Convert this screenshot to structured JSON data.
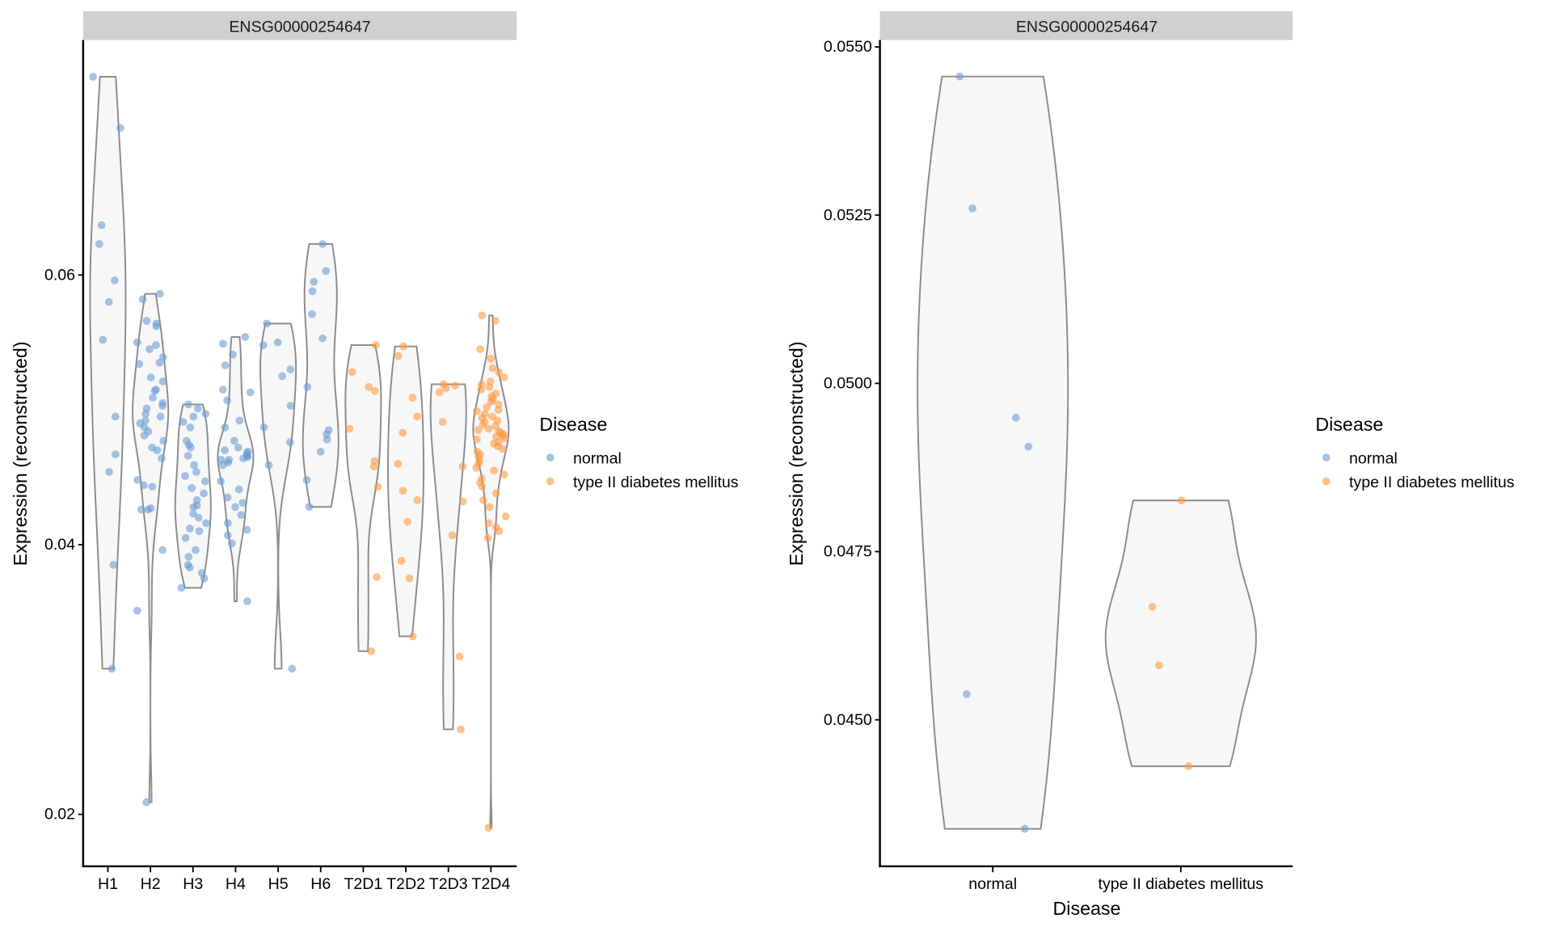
{
  "colors": {
    "normal": "#6c9bd2",
    "type II diabetes mellitus": "#fd9a43",
    "violin_fill": "#f7f7f7",
    "violin_stroke": "#8c8c8c",
    "strip": "#d0d0d0"
  },
  "legend": {
    "title": "Disease",
    "items": [
      "normal",
      "type II diabetes mellitus"
    ]
  },
  "chart_data": [
    {
      "type": "violin",
      "strip_title": "ENSG00000254647",
      "xlabel": "",
      "ylabel": "Expression (reconstructed)",
      "yticks": [
        "0.02",
        "0.04",
        "0.06"
      ],
      "ytick_values": [
        0.02,
        0.04,
        0.06
      ],
      "grid": false,
      "legend_position": "right",
      "categories": [
        "H1",
        "H2",
        "H3",
        "H4",
        "H5",
        "H6",
        "T2D1",
        "T2D2",
        "T2D3",
        "T2D4"
      ],
      "groups": [
        {
          "label": "H1",
          "disease": "normal",
          "values": [
            0.0747,
            0.0709,
            0.0637,
            0.0623,
            0.0596,
            0.058,
            0.0552,
            0.0495,
            0.0467,
            0.0454,
            0.0385,
            0.0308
          ]
        },
        {
          "label": "H2",
          "disease": "normal",
          "values": [
            0.0586,
            0.0582,
            0.0566,
            0.0564,
            0.0562,
            0.055,
            0.0548,
            0.0545,
            0.0539,
            0.0535,
            0.0534,
            0.0524,
            0.0521,
            0.0515,
            0.0514,
            0.0509,
            0.0505,
            0.0503,
            0.0501,
            0.0497,
            0.0495,
            0.0492,
            0.049,
            0.0487,
            0.0484,
            0.0481,
            0.0477,
            0.0472,
            0.047,
            0.0464,
            0.0448,
            0.0444,
            0.0443,
            0.0427,
            0.0426,
            0.0426,
            0.0396,
            0.0351,
            0.0209
          ]
        },
        {
          "label": "H3",
          "disease": "normal",
          "values": [
            0.0504,
            0.0501,
            0.0497,
            0.0495,
            0.0491,
            0.0487,
            0.0477,
            0.0474,
            0.0472,
            0.0466,
            0.0459,
            0.0454,
            0.0451,
            0.0447,
            0.0442,
            0.0438,
            0.0433,
            0.0429,
            0.0428,
            0.0423,
            0.042,
            0.0416,
            0.0412,
            0.041,
            0.0405,
            0.0396,
            0.0391,
            0.0385,
            0.0383,
            0.0379,
            0.0375,
            0.0368
          ]
        },
        {
          "label": "H4",
          "disease": "normal",
          "values": [
            0.0554,
            0.0549,
            0.0541,
            0.0533,
            0.0515,
            0.0513,
            0.0507,
            0.0492,
            0.0487,
            0.0477,
            0.0472,
            0.047,
            0.0469,
            0.0468,
            0.0466,
            0.0466,
            0.0465,
            0.0464,
            0.0463,
            0.0463,
            0.0461,
            0.0459,
            0.0447,
            0.0441,
            0.0435,
            0.0431,
            0.0428,
            0.0422,
            0.0416,
            0.0411,
            0.0407,
            0.0401,
            0.0358
          ]
        },
        {
          "label": "H5",
          "disease": "normal",
          "values": [
            0.0564,
            0.055,
            0.0548,
            0.053,
            0.0525,
            0.0503,
            0.0487,
            0.0476,
            0.0459,
            0.0308
          ]
        },
        {
          "label": "H6",
          "disease": "normal",
          "values": [
            0.0623,
            0.0603,
            0.0595,
            0.0588,
            0.0571,
            0.0553,
            0.0517,
            0.0485,
            0.0482,
            0.0478,
            0.0469,
            0.0448,
            0.0428
          ]
        },
        {
          "label": "T2D1",
          "disease": "type II diabetes mellitus",
          "values": [
            0.0548,
            0.0528,
            0.0517,
            0.0514,
            0.0486,
            0.0462,
            0.0458,
            0.0443,
            0.0376,
            0.0321
          ]
        },
        {
          "label": "T2D2",
          "disease": "type II diabetes mellitus",
          "values": [
            0.0547,
            0.054,
            0.0509,
            0.0495,
            0.0483,
            0.046,
            0.044,
            0.0433,
            0.0417,
            0.0388,
            0.0375,
            0.0332
          ]
        },
        {
          "label": "T2D3",
          "disease": "type II diabetes mellitus",
          "values": [
            0.0519,
            0.0518,
            0.0516,
            0.0513,
            0.0491,
            0.0458,
            0.0432,
            0.0407,
            0.0317,
            0.0263
          ]
        },
        {
          "label": "T2D4",
          "disease": "type II diabetes mellitus",
          "values": [
            0.057,
            0.0566,
            0.0545,
            0.0538,
            0.0531,
            0.0528,
            0.0524,
            0.0521,
            0.0519,
            0.0517,
            0.0515,
            0.0512,
            0.051,
            0.0508,
            0.0506,
            0.0504,
            0.0502,
            0.05,
            0.0499,
            0.0497,
            0.0495,
            0.0494,
            0.0492,
            0.0491,
            0.0489,
            0.0488,
            0.0486,
            0.0485,
            0.0484,
            0.0483,
            0.0482,
            0.0481,
            0.048,
            0.0479,
            0.0478,
            0.0476,
            0.0475,
            0.0473,
            0.0471,
            0.0469,
            0.0467,
            0.0465,
            0.0462,
            0.046,
            0.0457,
            0.0455,
            0.0452,
            0.0449,
            0.0446,
            0.0443,
            0.0438,
            0.0433,
            0.0428,
            0.0421,
            0.0416,
            0.0413,
            0.041,
            0.0405,
            0.019
          ]
        }
      ]
    },
    {
      "type": "violin",
      "strip_title": "ENSG00000254647",
      "xlabel": "Disease",
      "ylabel": "Expression (reconstructed)",
      "yticks": [
        "0.0450",
        "0.0475",
        "0.0500",
        "0.0525",
        "0.0550"
      ],
      "ytick_values": [
        0.045,
        0.0475,
        0.05,
        0.0525,
        0.055
      ],
      "grid": false,
      "legend_position": "right",
      "categories": [
        "normal",
        "type II diabetes mellitus"
      ],
      "groups": [
        {
          "label": "normal",
          "disease": "normal",
          "values": [
            0.05456,
            0.0526,
            0.04949,
            0.04906,
            0.04538,
            0.04338
          ]
        },
        {
          "label": "type II diabetes mellitus",
          "disease": "type II diabetes mellitus",
          "values": [
            0.04826,
            0.04668,
            0.04581,
            0.04431
          ]
        }
      ]
    }
  ]
}
